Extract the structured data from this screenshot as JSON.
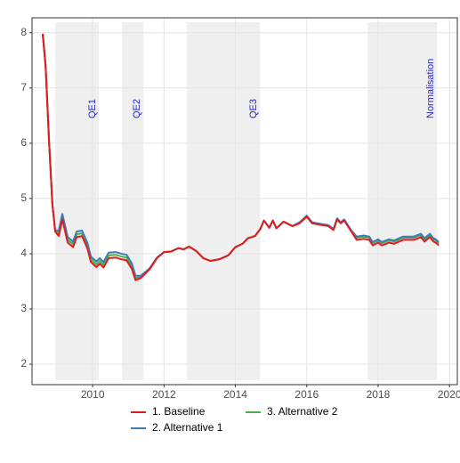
{
  "chart_data": {
    "type": "line",
    "x": [
      2008.6,
      2008.68,
      2008.78,
      2008.87,
      2008.95,
      2009.05,
      2009.15,
      2009.3,
      2009.45,
      2009.55,
      2009.7,
      2009.85,
      2009.95,
      2010.1,
      2010.2,
      2010.3,
      2010.45,
      2010.65,
      2010.8,
      2010.95,
      2011.1,
      2011.2,
      2011.35,
      2011.6,
      2011.8,
      2012.0,
      2012.2,
      2012.4,
      2012.55,
      2012.7,
      2012.9,
      2013.1,
      2013.3,
      2013.55,
      2013.8,
      2014.0,
      2014.2,
      2014.35,
      2014.55,
      2014.7,
      2014.8,
      2014.95,
      2015.05,
      2015.15,
      2015.35,
      2015.6,
      2015.8,
      2016.0,
      2016.15,
      2016.4,
      2016.6,
      2016.75,
      2016.85,
      2016.95,
      2017.05,
      2017.25,
      2017.4,
      2017.6,
      2017.75,
      2017.85,
      2018.0,
      2018.1,
      2018.3,
      2018.45,
      2018.7,
      2019.0,
      2019.2,
      2019.3,
      2019.45,
      2019.55,
      2019.62,
      2019.7
    ],
    "series": [
      {
        "name": "1. Baseline",
        "color": "#e41a1c",
        "values": [
          7.98,
          7.4,
          6.0,
          4.9,
          4.4,
          4.32,
          4.62,
          4.2,
          4.12,
          4.3,
          4.32,
          4.1,
          3.85,
          3.76,
          3.82,
          3.75,
          3.92,
          3.93,
          3.9,
          3.88,
          3.72,
          3.52,
          3.56,
          3.72,
          3.92,
          4.03,
          4.04,
          4.1,
          4.08,
          4.13,
          4.05,
          3.92,
          3.87,
          3.9,
          3.97,
          4.12,
          4.18,
          4.28,
          4.32,
          4.45,
          4.6,
          4.47,
          4.6,
          4.46,
          4.58,
          4.5,
          4.55,
          4.67,
          4.55,
          4.52,
          4.5,
          4.43,
          4.62,
          4.55,
          4.6,
          4.4,
          4.25,
          4.27,
          4.25,
          4.15,
          4.2,
          4.15,
          4.2,
          4.18,
          4.25,
          4.25,
          4.3,
          4.22,
          4.3,
          4.22,
          4.2,
          4.15
        ]
      },
      {
        "name": "2. Alternative 1",
        "color": "#377eb8",
        "values": [
          7.98,
          7.4,
          6.0,
          4.9,
          4.42,
          4.42,
          4.72,
          4.3,
          4.22,
          4.4,
          4.42,
          4.2,
          3.95,
          3.86,
          3.92,
          3.85,
          4.02,
          4.03,
          4.0,
          3.98,
          3.82,
          3.6,
          3.6,
          3.74,
          3.93,
          4.03,
          4.04,
          4.1,
          4.08,
          4.13,
          4.05,
          3.92,
          3.87,
          3.9,
          3.97,
          4.12,
          4.18,
          4.28,
          4.32,
          4.45,
          4.6,
          4.47,
          4.6,
          4.46,
          4.58,
          4.5,
          4.57,
          4.69,
          4.57,
          4.54,
          4.52,
          4.45,
          4.64,
          4.57,
          4.62,
          4.42,
          4.31,
          4.33,
          4.31,
          4.21,
          4.26,
          4.21,
          4.26,
          4.24,
          4.31,
          4.31,
          4.36,
          4.28,
          4.36,
          4.28,
          4.26,
          4.21
        ]
      },
      {
        "name": "3. Alternative 2",
        "color": "#4daf4a",
        "values": [
          7.98,
          7.4,
          6.0,
          4.9,
          4.41,
          4.37,
          4.67,
          4.25,
          4.17,
          4.35,
          4.37,
          4.15,
          3.9,
          3.81,
          3.87,
          3.8,
          3.97,
          3.98,
          3.95,
          3.93,
          3.77,
          3.56,
          3.58,
          3.73,
          3.92,
          4.03,
          4.04,
          4.1,
          4.08,
          4.13,
          4.05,
          3.92,
          3.87,
          3.9,
          3.97,
          4.12,
          4.18,
          4.28,
          4.32,
          4.45,
          4.6,
          4.47,
          4.6,
          4.46,
          4.58,
          4.5,
          4.56,
          4.68,
          4.56,
          4.53,
          4.51,
          4.44,
          4.63,
          4.56,
          4.61,
          4.41,
          4.29,
          4.31,
          4.29,
          4.19,
          4.24,
          4.19,
          4.24,
          4.22,
          4.29,
          4.29,
          4.34,
          4.26,
          4.34,
          4.26,
          4.24,
          4.19
        ]
      }
    ],
    "shaded_periods": [
      {
        "label": "QE1",
        "start": 2008.95,
        "end": 2010.17
      },
      {
        "label": "QE2",
        "start": 2010.82,
        "end": 2011.42
      },
      {
        "label": "QE3",
        "start": 2012.64,
        "end": 2014.69
      },
      {
        "label": "Normalisation",
        "start": 2017.71,
        "end": 2019.65
      }
    ],
    "xlim": [
      2008.3,
      2020.22
    ],
    "xticks": [
      2010,
      2012,
      2014,
      2016,
      2018,
      2020
    ],
    "ylim": [
      1.63,
      8.27
    ],
    "yticks": [
      2,
      3,
      4,
      5,
      6,
      7,
      8
    ],
    "grid": true,
    "legend_position": "bottom"
  }
}
